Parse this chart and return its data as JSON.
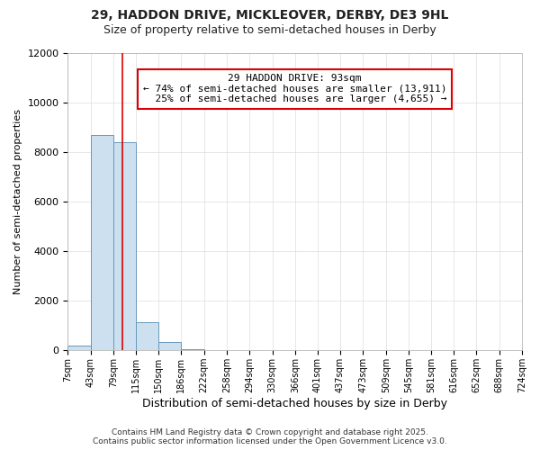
{
  "title": "29, HADDON DRIVE, MICKLEOVER, DERBY, DE3 9HL",
  "subtitle": "Size of property relative to semi-detached houses in Derby",
  "xlabel": "Distribution of semi-detached houses by size in Derby",
  "ylabel": "Number of semi-detached properties",
  "footer_line1": "Contains HM Land Registry data © Crown copyright and database right 2025.",
  "footer_line2": "Contains public sector information licensed under the Open Government Licence v3.0.",
  "bin_edges": [
    7,
    43,
    79,
    115,
    150,
    186,
    222,
    258,
    294,
    330,
    366,
    401,
    437,
    473,
    509,
    545,
    581,
    616,
    652,
    688,
    724
  ],
  "bar_heights": [
    200,
    8700,
    8400,
    1150,
    350,
    50,
    20,
    5,
    3,
    2,
    1,
    1,
    1,
    0,
    0,
    0,
    0,
    0,
    0,
    0
  ],
  "bar_color": "#cde0f0",
  "bar_edgecolor": "#6699bb",
  "property_size": 93,
  "property_label": "29 HADDON DRIVE: 93sqm",
  "pct_smaller": 74,
  "pct_larger": 25,
  "num_smaller": 13911,
  "num_larger": 4655,
  "vline_color": "#dd0000",
  "annotation_edgecolor": "#dd0000",
  "ylim": [
    0,
    12000
  ],
  "yticks": [
    0,
    2000,
    4000,
    6000,
    8000,
    10000,
    12000
  ],
  "grid_color": "#dddddd",
  "background_color": "#ffffff",
  "title_fontsize": 10,
  "subtitle_fontsize": 9,
  "annot_fontsize": 8
}
